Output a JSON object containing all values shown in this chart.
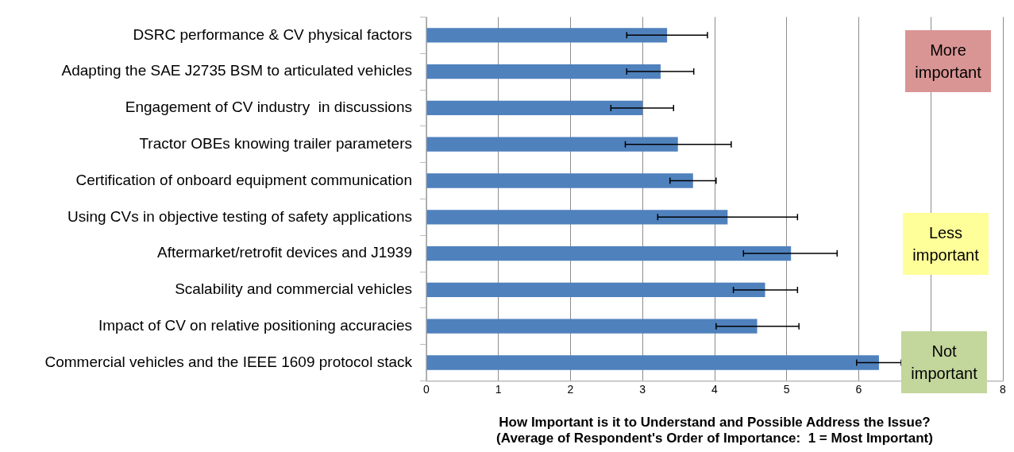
{
  "chart_data": {
    "type": "bar",
    "orientation": "horizontal",
    "xlabel": "How Important is it to Understand and Possible Address the Issue?\n(Average of Respondent's Order of Importance:  1 = Most Important)",
    "categories": [
      "DSRC performance & CV physical factors",
      "Adapting the SAE J2735 BSM to articulated vehicles",
      "Engagement of CV industry  in discussions",
      "Tractor OBEs knowing trailer parameters",
      "Certification of onboard equipment communication",
      "Using CVs in objective testing of safety applications",
      "Aftermarket/retrofit devices and J1939",
      "Scalability and commercial vehicles",
      "Impact of CV on relative positioning accuracies",
      "Commercial vehicles and the IEEE 1609 protocol stack"
    ],
    "values": [
      3.34,
      3.25,
      3.0,
      3.49,
      3.7,
      4.18,
      5.06,
      4.7,
      4.59,
      6.28
    ],
    "errors": [
      [
        2.78,
        3.9
      ],
      [
        2.78,
        3.71
      ],
      [
        2.56,
        3.43
      ],
      [
        2.76,
        4.23
      ],
      [
        3.38,
        4.02
      ],
      [
        3.21,
        5.15
      ],
      [
        4.4,
        5.7
      ],
      [
        4.26,
        5.15
      ],
      [
        4.02,
        5.17
      ],
      [
        5.97,
        6.59
      ]
    ],
    "color": "#4f81bd",
    "xlim": [
      0,
      8
    ],
    "xticks": [
      0,
      1,
      2,
      3,
      4,
      5,
      6,
      {
        "value": 7,
        "label": null
      },
      8
    ],
    "grid": "x",
    "legend": false,
    "annotations": [
      "More\nimportant",
      "Less\nimportant",
      "Not\nimportant"
    ]
  }
}
